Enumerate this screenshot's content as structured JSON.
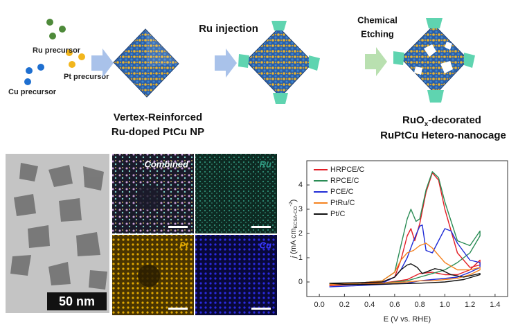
{
  "schematic": {
    "precursors": [
      "Ru precursor",
      "Pt precursor",
      "Cu precursor"
    ],
    "injection": "Ru injection",
    "etching": [
      "Chemical",
      "Etching"
    ],
    "product1": [
      "Vertex-Reinforced",
      "Ru-doped PtCu NP"
    ],
    "product2": {
      "prefix": "RuO",
      "sub": "x",
      "suffix": "-decorated",
      "line2": "RuPtCu Hetero-nanocage"
    }
  },
  "micrographs": {
    "scale_bar": "50 nm",
    "maps": [
      "Combined",
      "Ru",
      "Pt",
      "Cu"
    ]
  },
  "chart_data": {
    "type": "line",
    "xlabel": "E (V vs. RHE)",
    "ylabel": {
      "italic": "j",
      "main": " (mA cm",
      "sub": "ECSA-CO",
      "sup": "-2",
      "end": ")"
    },
    "xlim": [
      -0.1,
      1.5
    ],
    "ylim": [
      -0.6,
      5.0
    ],
    "xticks": [
      {
        "value": 0,
        "label": "0.0"
      },
      0.2,
      0.4,
      0.6,
      0.8,
      {
        "value": 1,
        "label": "1.0"
      },
      1.2,
      1.4
    ],
    "yticks": [
      0,
      1,
      2,
      3,
      4
    ],
    "legend": "upper left",
    "series": [
      {
        "name": "HRPCE/C",
        "color": "#e21d25",
        "x": [
          0.08,
          0.3,
          0.5,
          0.6,
          0.65,
          0.7,
          0.73,
          0.76,
          0.8,
          0.85,
          0.9,
          0.95,
          1.0,
          1.1,
          1.2,
          1.28,
          1.28,
          1.2,
          1.1,
          1.0,
          0.9,
          0.8,
          0.7,
          0.5,
          0.3,
          0.08
        ],
        "values": [
          -0.15,
          -0.1,
          0,
          0.2,
          0.9,
          1.9,
          2.2,
          1.7,
          2.4,
          3.7,
          4.5,
          4.2,
          3.0,
          1.2,
          0.6,
          0.7,
          0.9,
          0.5,
          0.3,
          0.3,
          0.4,
          0.35,
          0.1,
          -0.05,
          -0.1,
          -0.15
        ]
      },
      {
        "name": "RPCE/C",
        "color": "#2a8c55",
        "x": [
          0.08,
          0.3,
          0.5,
          0.6,
          0.65,
          0.7,
          0.73,
          0.77,
          0.8,
          0.85,
          0.9,
          0.95,
          1.0,
          1.1,
          1.2,
          1.28,
          1.28,
          1.2,
          1.1,
          1.0,
          0.9,
          0.8,
          0.7,
          0.5,
          0.3,
          0.08
        ],
        "values": [
          -0.1,
          -0.05,
          0.05,
          0.4,
          1.5,
          2.6,
          3.0,
          2.5,
          2.6,
          3.8,
          4.55,
          4.3,
          3.3,
          1.7,
          1.5,
          2.1,
          1.9,
          1.2,
          0.8,
          0.5,
          0.35,
          0.2,
          0.05,
          -0.05,
          -0.1,
          -0.1
        ]
      },
      {
        "name": "PCE/C",
        "color": "#1f2bd6",
        "x": [
          0.08,
          0.3,
          0.5,
          0.6,
          0.65,
          0.7,
          0.75,
          0.8,
          0.82,
          0.85,
          0.9,
          0.95,
          1.0,
          1.05,
          1.1,
          1.2,
          1.28,
          1.28,
          1.2,
          1.1,
          1.0,
          0.9,
          0.8,
          0.7,
          0.5,
          0.3,
          0.08
        ],
        "values": [
          -0.2,
          -0.15,
          -0.05,
          0.2,
          0.5,
          1.0,
          1.7,
          2.3,
          2.35,
          1.3,
          1.2,
          1.7,
          2.2,
          2.1,
          1.6,
          0.9,
          0.8,
          0.6,
          0.4,
          0.2,
          0.15,
          0.1,
          0.05,
          -0.05,
          -0.1,
          -0.15,
          -0.2
        ]
      },
      {
        "name": "PtRu/C",
        "color": "#f5821f",
        "x": [
          0.08,
          0.3,
          0.5,
          0.6,
          0.65,
          0.7,
          0.75,
          0.8,
          0.85,
          0.9,
          0.95,
          1.0,
          1.1,
          1.2,
          1.28,
          1.28,
          1.2,
          1.1,
          1.0,
          0.9,
          0.8,
          0.7,
          0.5,
          0.3,
          0.08
        ],
        "values": [
          -0.1,
          -0.05,
          0.05,
          0.4,
          0.9,
          1.2,
          1.3,
          1.5,
          1.6,
          1.4,
          1.1,
          0.8,
          0.5,
          0.5,
          0.6,
          0.5,
          0.3,
          0.15,
          0.1,
          0.05,
          0.05,
          0,
          -0.05,
          -0.1,
          -0.1
        ]
      },
      {
        "name": "Pt/C",
        "color": "#111111",
        "x": [
          0.08,
          0.3,
          0.5,
          0.6,
          0.65,
          0.7,
          0.73,
          0.78,
          0.82,
          0.87,
          0.92,
          0.97,
          1.05,
          1.15,
          1.28,
          1.28,
          1.15,
          1.0,
          0.8,
          0.6,
          0.4,
          0.2,
          0.08
        ],
        "values": [
          -0.05,
          -0.03,
          0,
          0.2,
          0.5,
          0.7,
          0.75,
          0.6,
          0.35,
          0.45,
          0.55,
          0.5,
          0.3,
          0.2,
          0.35,
          0.3,
          0.1,
          0.0,
          -0.05,
          -0.08,
          -0.1,
          -0.1,
          -0.05
        ]
      }
    ]
  }
}
